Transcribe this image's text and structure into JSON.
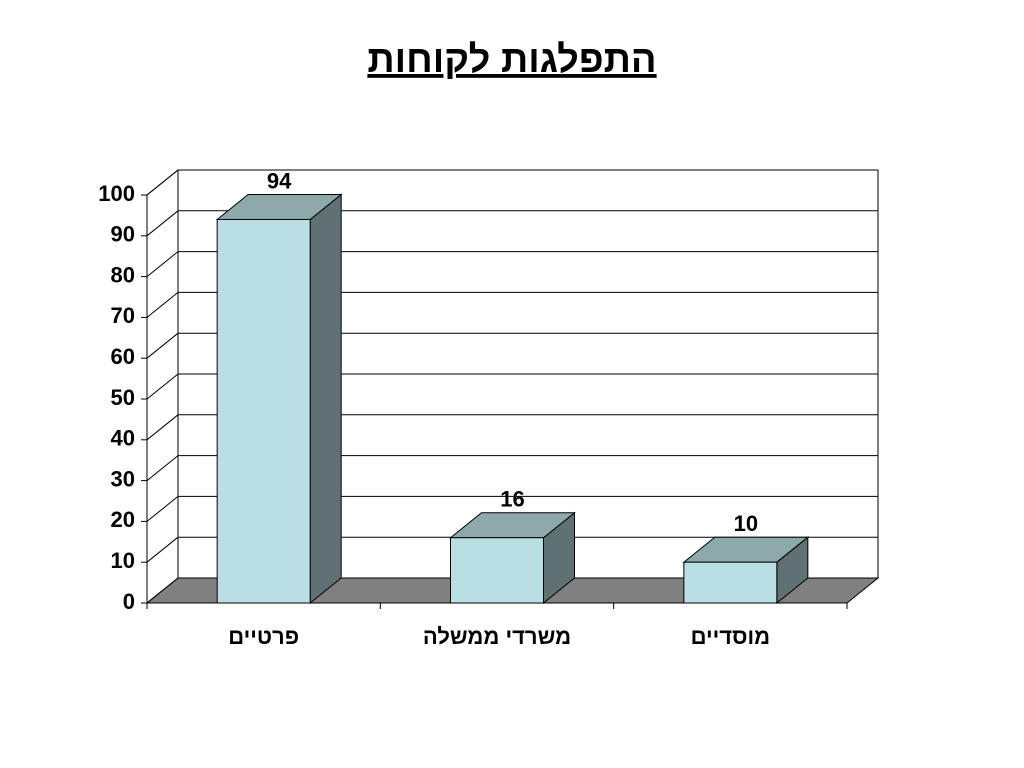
{
  "chart_data": {
    "type": "bar3d",
    "title": "התפלגות לקוחות",
    "categories": [
      "פרטיים",
      "משרדי ממשלה",
      "מוסדיים"
    ],
    "values": [
      94,
      16,
      10
    ],
    "colors": {
      "front": "#b9dfe4",
      "top": "#8ea9ab",
      "side": "#5f7173",
      "floor": "#808080"
    },
    "ylim": [
      0,
      100
    ],
    "yticks": [
      0,
      10,
      20,
      30,
      40,
      50,
      60,
      70,
      80,
      90,
      100
    ],
    "grid": true
  }
}
